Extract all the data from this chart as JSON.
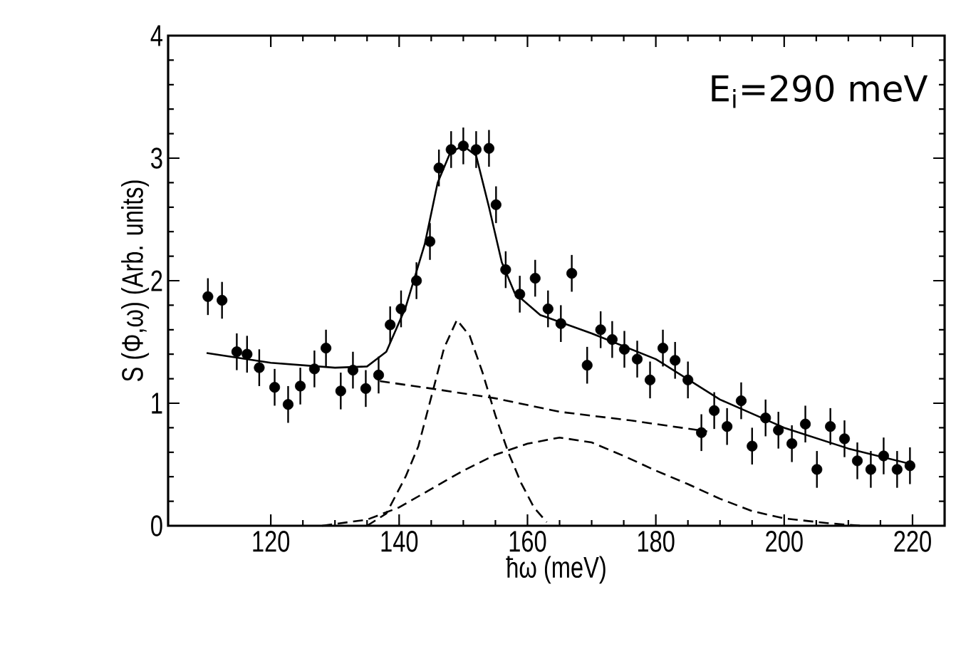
{
  "chart_data": {
    "type": "scatter",
    "xlabel": "ħω (meV)",
    "ylabel": "S (Φ,ω) (Arb. units)",
    "annotations": [
      "E$_{i}$=290 meV"
    ],
    "xlim": [
      104,
      225
    ],
    "ylim": [
      0,
      4
    ],
    "xticks": [
      120,
      140,
      160,
      180,
      200,
      220
    ],
    "yticks": [
      0,
      1,
      2,
      3,
      4
    ],
    "series": [
      {
        "color": "#000000",
        "marker": "circle",
        "x": [
          110.2,
          112.4,
          114.7,
          116.3,
          118.2,
          120.6,
          122.7,
          124.6,
          126.8,
          128.6,
          130.9,
          132.8,
          134.8,
          136.8,
          138.6,
          140.3,
          142.7,
          144.8,
          146.2,
          148.1,
          150,
          152,
          154,
          155.1,
          156.6,
          158.8,
          161.2,
          163.2,
          165.2,
          166.9,
          169.3,
          171.4,
          173.2,
          175.1,
          177.1,
          179.1,
          181.1,
          183.0,
          185.0,
          187.1,
          189.1,
          191.1,
          193.3,
          195.0,
          197.1,
          199.1,
          201.2,
          203.3,
          205.1,
          207.2,
          209.4,
          211.4,
          213.5,
          215.5,
          217.6,
          219.6
        ],
        "values": [
          1.87,
          1.84,
          1.42,
          1.4,
          1.29,
          1.13,
          0.99,
          1.14,
          1.28,
          1.45,
          1.1,
          1.27,
          1.12,
          1.23,
          1.64,
          1.77,
          2.0,
          2.32,
          2.92,
          3.07,
          3.1,
          3.07,
          3.08,
          2.62,
          2.09,
          1.89,
          2.02,
          1.77,
          1.65,
          2.06,
          1.31,
          1.6,
          1.52,
          1.44,
          1.36,
          1.19,
          1.45,
          1.35,
          1.19,
          0.76,
          0.94,
          0.81,
          1.02,
          0.65,
          0.88,
          0.78,
          0.67,
          0.83,
          0.46,
          0.81,
          0.71,
          0.53,
          0.46,
          0.57,
          0.46,
          0.49
        ],
        "errors": [
          0.15,
          0.15,
          0.15,
          0.15,
          0.15,
          0.15,
          0.15,
          0.15,
          0.15,
          0.15,
          0.15,
          0.15,
          0.15,
          0.15,
          0.15,
          0.15,
          0.15,
          0.15,
          0.15,
          0.15,
          0.15,
          0.15,
          0.15,
          0.15,
          0.15,
          0.15,
          0.15,
          0.15,
          0.15,
          0.15,
          0.15,
          0.15,
          0.15,
          0.15,
          0.15,
          0.15,
          0.15,
          0.15,
          0.15,
          0.15,
          0.15,
          0.15,
          0.15,
          0.15,
          0.15,
          0.15,
          0.15,
          0.15,
          0.15,
          0.15,
          0.15,
          0.15,
          0.15,
          0.15,
          0.15,
          0.15
        ]
      },
      {
        "type": "line",
        "color": "#000000",
        "marker": "none",
        "line_style": "solid",
        "x": [
          110,
          120,
          130,
          135,
          138,
          141,
          144,
          146,
          148,
          150,
          152,
          154,
          156,
          158,
          162,
          170,
          180,
          190,
          200,
          210,
          220
        ],
        "values": [
          1.41,
          1.33,
          1.29,
          1.3,
          1.42,
          1.78,
          2.3,
          2.8,
          3.05,
          3.1,
          3.02,
          2.6,
          2.15,
          1.9,
          1.72,
          1.57,
          1.36,
          1.03,
          0.8,
          0.63,
          0.5
        ]
      },
      {
        "type": "line",
        "color": "#000000",
        "marker": "none",
        "line_style": "dashed",
        "x": [
          137,
          145,
          155,
          165,
          176,
          188
        ],
        "values": [
          1.18,
          1.12,
          1.04,
          0.93,
          0.86,
          0.77
        ]
      },
      {
        "type": "line",
        "color": "#000000",
        "marker": "none",
        "line_style": "dashed",
        "x": [
          135,
          138,
          141,
          143,
          145,
          147,
          149,
          151,
          153,
          155,
          157,
          159,
          161,
          163
        ],
        "values": [
          0,
          0.1,
          0.4,
          0.65,
          1.05,
          1.45,
          1.68,
          1.55,
          1.25,
          0.9,
          0.6,
          0.35,
          0.15,
          0.03
        ]
      },
      {
        "type": "line",
        "color": "#000000",
        "marker": "none",
        "line_style": "dashed",
        "x": [
          128,
          135,
          140,
          145,
          150,
          155,
          160,
          165,
          170,
          175,
          180,
          185,
          190,
          195,
          200,
          207,
          212
        ],
        "values": [
          0,
          0.05,
          0.15,
          0.3,
          0.45,
          0.58,
          0.67,
          0.72,
          0.68,
          0.57,
          0.45,
          0.34,
          0.22,
          0.12,
          0.06,
          0.02,
          0
        ]
      }
    ]
  }
}
